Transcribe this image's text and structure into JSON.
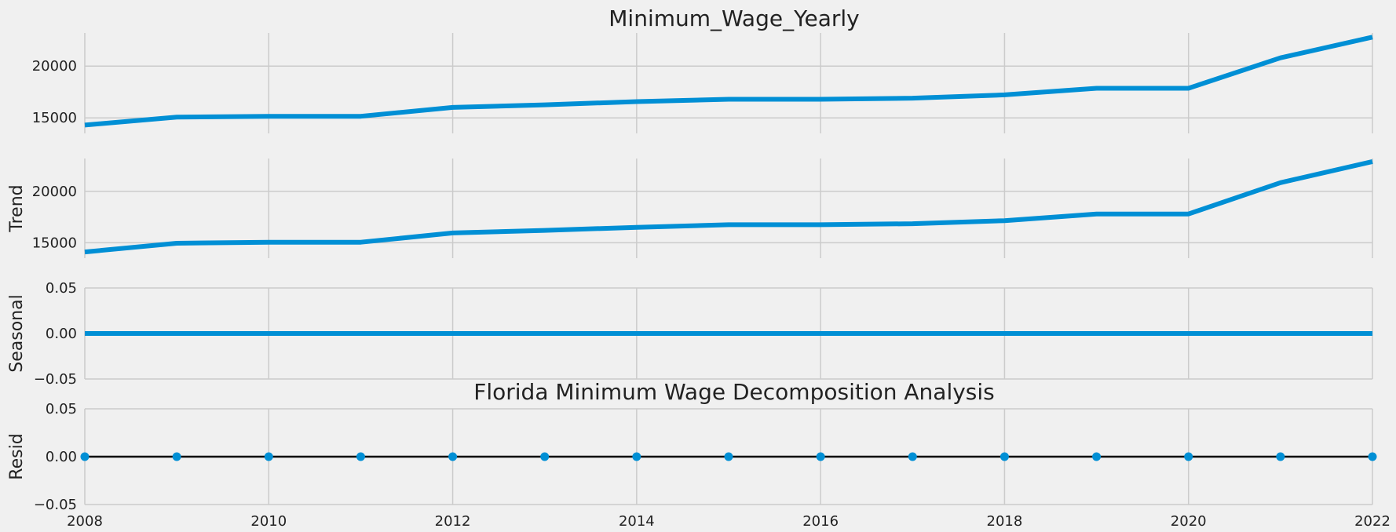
{
  "chart_data": {
    "type": "line",
    "title": "Minimum_Wage_Yearly",
    "annotation": "Florida Minimum Wage Decomposition Analysis",
    "x": [
      2008,
      2009,
      2010,
      2011,
      2012,
      2013,
      2014,
      2015,
      2016,
      2017,
      2018,
      2019,
      2020,
      2021,
      2022
    ],
    "xlim": [
      2008,
      2022
    ],
    "xticks": [
      "2008",
      "2010",
      "2012",
      "2014",
      "2016",
      "2018",
      "2020",
      "2022"
    ],
    "line_color": "#008fd5",
    "panels": [
      {
        "ylabel": "",
        "kind": "line",
        "ylim": [
          13500,
          23200
        ],
        "yticks": [
          15000,
          20000
        ],
        "ytick_labels": [
          "15000",
          "20000"
        ],
        "values": [
          14300,
          15080,
          15150,
          15150,
          16010,
          16260,
          16570,
          16800,
          16800,
          16900,
          17220,
          17860,
          17860,
          20800,
          22800
        ]
      },
      {
        "ylabel": "Trend",
        "kind": "line",
        "ylim": [
          13500,
          23200
        ],
        "yticks": [
          15000,
          20000
        ],
        "ytick_labels": [
          "15000",
          "20000"
        ],
        "values": [
          14100,
          14950,
          15050,
          15050,
          15950,
          16200,
          16500,
          16750,
          16750,
          16850,
          17150,
          17800,
          17800,
          20850,
          22900
        ]
      },
      {
        "ylabel": "Seasonal",
        "kind": "line",
        "ylim": [
          -0.05,
          0.05
        ],
        "yticks": [
          -0.05,
          0.0,
          0.05
        ],
        "ytick_labels": [
          "−0.05",
          "0.00",
          "0.05"
        ],
        "values": [
          0,
          0,
          0,
          0,
          0,
          0,
          0,
          0,
          0,
          0,
          0,
          0,
          0,
          0,
          0
        ]
      },
      {
        "ylabel": "Resid",
        "kind": "scatter",
        "ylim": [
          -0.05,
          0.05
        ],
        "yticks": [
          -0.05,
          0.0,
          0.05
        ],
        "ytick_labels": [
          "−0.05",
          "0.00",
          "0.05"
        ],
        "values": [
          0,
          0,
          0,
          0,
          0,
          0,
          0,
          0,
          0,
          0,
          0,
          0,
          0,
          0,
          0
        ]
      }
    ]
  }
}
